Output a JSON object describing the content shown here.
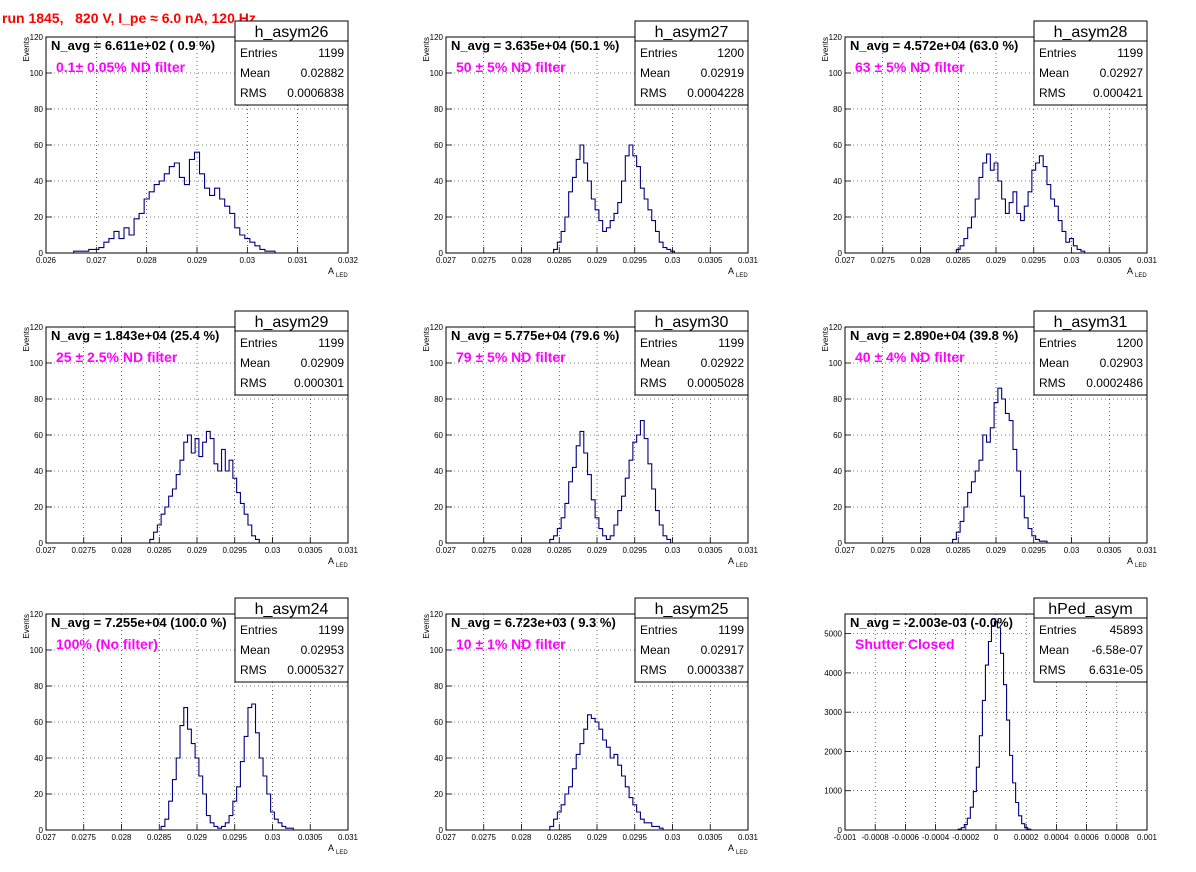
{
  "figure_title": "run 1845,   820 V, I_pe ≈ 6.0 nA, 120 Hz",
  "colors": {
    "histogram_line": "#000080",
    "title_red": "#ff0000",
    "filter_magenta": "#ff00ff",
    "grid": "#000000"
  },
  "chart_data": [
    {
      "type": "bar",
      "histogram_name": "h_asym26",
      "navg_text": "N_avg = 6.611e+02 ( 0.9 %)",
      "filter_text": "0.1± 0.05% ND filter",
      "stats": {
        "entries_label": "Entries",
        "entries": "1199",
        "mean_label": "Mean",
        "mean": "0.02882",
        "rms_label": "RMS",
        "rms": "0.0006838"
      },
      "ylabel": "Events",
      "xlabel": "A",
      "xlabel_sub": "LED",
      "xlim": [
        0.026,
        0.032
      ],
      "ylim": [
        0,
        120
      ],
      "xticks": [
        0.026,
        0.027,
        0.028,
        0.029,
        0.03,
        0.031,
        0.032
      ],
      "xtick_labels": [
        "0.026",
        "0.027",
        "0.028",
        "0.029",
        "0.03",
        "0.031",
        "0.032"
      ],
      "yticks": [
        0,
        20,
        40,
        60,
        80,
        100,
        120
      ],
      "ytick_labels": [
        "0",
        "20",
        "40",
        "60",
        "80",
        "100",
        "120"
      ],
      "x": [
        0.0266,
        0.0267,
        0.0268,
        0.0269,
        0.027,
        0.0271,
        0.0272,
        0.0273,
        0.0274,
        0.0275,
        0.0276,
        0.0277,
        0.0278,
        0.0279,
        0.028,
        0.0281,
        0.0282,
        0.0283,
        0.0284,
        0.0285,
        0.0286,
        0.0287,
        0.0288,
        0.0289,
        0.029,
        0.0291,
        0.0292,
        0.0293,
        0.0294,
        0.0295,
        0.0296,
        0.0297,
        0.0298,
        0.0299,
        0.03,
        0.0301,
        0.0302,
        0.0303,
        0.0304,
        0.0305
      ],
      "values": [
        1,
        1,
        1,
        2,
        2,
        3,
        6,
        8,
        12,
        8,
        14,
        10,
        19,
        22,
        30,
        34,
        38,
        40,
        44,
        48,
        50,
        42,
        38,
        52,
        56,
        44,
        36,
        32,
        36,
        30,
        26,
        22,
        14,
        10,
        8,
        6,
        4,
        2,
        1,
        1
      ]
    },
    {
      "type": "bar",
      "histogram_name": "h_asym27",
      "navg_text": "N_avg = 3.635e+04 (50.1 %)",
      "filter_text": "50 ± 5% ND filter",
      "stats": {
        "entries_label": "Entries",
        "entries": "1200",
        "mean_label": "Mean",
        "mean": "0.02919",
        "rms_label": "RMS",
        "rms": "0.0004228"
      },
      "ylabel": "Events",
      "xlabel": "A",
      "xlabel_sub": "LED",
      "xlim": [
        0.027,
        0.031
      ],
      "ylim": [
        0,
        120
      ],
      "xticks": [
        0.027,
        0.0275,
        0.028,
        0.0285,
        0.029,
        0.0295,
        0.03,
        0.0305,
        0.031
      ],
      "xtick_labels": [
        "0.027",
        "0.0275",
        "0.028",
        "0.0285",
        "0.029",
        "0.0295",
        "0.03",
        "0.0305",
        "0.031"
      ],
      "yticks": [
        0,
        20,
        40,
        60,
        80,
        100,
        120
      ],
      "ytick_labels": [
        "0",
        "20",
        "40",
        "60",
        "80",
        "100",
        "120"
      ],
      "x": [
        0.02845,
        0.0285,
        0.02855,
        0.0286,
        0.02865,
        0.0287,
        0.02875,
        0.0288,
        0.02885,
        0.0289,
        0.02895,
        0.029,
        0.02905,
        0.0291,
        0.02915,
        0.0292,
        0.02925,
        0.0293,
        0.02935,
        0.0294,
        0.02945,
        0.0295,
        0.02955,
        0.0296,
        0.02965,
        0.0297,
        0.02975,
        0.0298,
        0.02985,
        0.0299,
        0.02995,
        0.03
      ],
      "values": [
        2,
        6,
        12,
        20,
        34,
        42,
        52,
        60,
        50,
        40,
        30,
        24,
        18,
        12,
        14,
        18,
        22,
        28,
        40,
        54,
        60,
        54,
        48,
        36,
        30,
        24,
        18,
        12,
        6,
        3,
        2,
        1
      ]
    },
    {
      "type": "bar",
      "histogram_name": "h_asym28",
      "navg_text": "N_avg = 4.572e+04 (63.0 %)",
      "filter_text": "63 ± 5% ND filter",
      "stats": {
        "entries_label": "Entries",
        "entries": "1199",
        "mean_label": "Mean",
        "mean": "0.02927",
        "rms_label": "RMS",
        "rms": "0.000421"
      },
      "ylabel": "Events",
      "xlabel": "A",
      "xlabel_sub": "LED",
      "xlim": [
        0.027,
        0.031
      ],
      "ylim": [
        0,
        120
      ],
      "xticks": [
        0.027,
        0.0275,
        0.028,
        0.0285,
        0.029,
        0.0295,
        0.03,
        0.0305,
        0.031
      ],
      "xtick_labels": [
        "0.027",
        "0.0275",
        "0.028",
        "0.0285",
        "0.029",
        "0.0295",
        "0.03",
        "0.0305",
        "0.031"
      ],
      "yticks": [
        0,
        20,
        40,
        60,
        80,
        100,
        120
      ],
      "ytick_labels": [
        "0",
        "20",
        "40",
        "60",
        "80",
        "100",
        "120"
      ],
      "x": [
        0.0285,
        0.02855,
        0.0286,
        0.02865,
        0.0287,
        0.02875,
        0.0288,
        0.02885,
        0.0289,
        0.02895,
        0.029,
        0.02905,
        0.0291,
        0.02915,
        0.0292,
        0.02925,
        0.0293,
        0.02935,
        0.0294,
        0.02945,
        0.0295,
        0.02955,
        0.0296,
        0.02965,
        0.0297,
        0.02975,
        0.0298,
        0.02985,
        0.0299,
        0.02995,
        0.03,
        0.03005,
        0.0301,
        0.03015
      ],
      "values": [
        2,
        4,
        8,
        14,
        20,
        30,
        42,
        50,
        55,
        46,
        50,
        40,
        30,
        22,
        28,
        34,
        22,
        18,
        26,
        34,
        46,
        50,
        54,
        48,
        38,
        30,
        26,
        18,
        12,
        6,
        8,
        4,
        2,
        1
      ]
    },
    {
      "type": "bar",
      "histogram_name": "h_asym29",
      "navg_text": "N_avg = 1.843e+04 (25.4 %)",
      "filter_text": "25 ± 2.5% ND filter",
      "stats": {
        "entries_label": "Entries",
        "entries": "1199",
        "mean_label": "Mean",
        "mean": "0.02909",
        "rms_label": "RMS",
        "rms": "0.000301"
      },
      "ylabel": "Events",
      "xlabel": "A",
      "xlabel_sub": "LED",
      "xlim": [
        0.027,
        0.031
      ],
      "ylim": [
        0,
        120
      ],
      "xticks": [
        0.027,
        0.0275,
        0.028,
        0.0285,
        0.029,
        0.0295,
        0.03,
        0.0305,
        0.031
      ],
      "xtick_labels": [
        "0.027",
        "0.0275",
        "0.028",
        "0.0285",
        "0.029",
        "0.0295",
        "0.03",
        "0.0305",
        "0.031"
      ],
      "yticks": [
        0,
        20,
        40,
        60,
        80,
        100,
        120
      ],
      "ytick_labels": [
        "0",
        "20",
        "40",
        "60",
        "80",
        "100",
        "120"
      ],
      "x": [
        0.0284,
        0.02845,
        0.0285,
        0.02855,
        0.0286,
        0.02865,
        0.0287,
        0.02875,
        0.0288,
        0.02885,
        0.0289,
        0.02895,
        0.029,
        0.02905,
        0.0291,
        0.02915,
        0.0292,
        0.02925,
        0.0293,
        0.02935,
        0.0294,
        0.02945,
        0.0295,
        0.02955,
        0.0296,
        0.02965,
        0.0297,
        0.02975,
        0.0298
      ],
      "values": [
        2,
        6,
        10,
        16,
        20,
        26,
        30,
        38,
        46,
        56,
        60,
        50,
        58,
        48,
        56,
        62,
        58,
        44,
        40,
        52,
        40,
        46,
        36,
        28,
        22,
        16,
        10,
        4,
        2
      ]
    },
    {
      "type": "bar",
      "histogram_name": "h_asym30",
      "navg_text": "N_avg = 5.775e+04 (79.6 %)",
      "filter_text": "79 ± 5% ND filter",
      "stats": {
        "entries_label": "Entries",
        "entries": "1199",
        "mean_label": "Mean",
        "mean": "0.02922",
        "rms_label": "RMS",
        "rms": "0.0005028"
      },
      "ylabel": "Events",
      "xlabel": "A",
      "xlabel_sub": "LED",
      "xlim": [
        0.027,
        0.031
      ],
      "ylim": [
        0,
        120
      ],
      "xticks": [
        0.027,
        0.0275,
        0.028,
        0.0285,
        0.029,
        0.0295,
        0.03,
        0.0305,
        0.031
      ],
      "xtick_labels": [
        "0.027",
        "0.0275",
        "0.028",
        "0.0285",
        "0.029",
        "0.0295",
        "0.03",
        "0.0305",
        "0.031"
      ],
      "yticks": [
        0,
        20,
        40,
        60,
        80,
        100,
        120
      ],
      "ytick_labels": [
        "0",
        "20",
        "40",
        "60",
        "80",
        "100",
        "120"
      ],
      "x": [
        0.0284,
        0.02845,
        0.0285,
        0.02855,
        0.0286,
        0.02865,
        0.0287,
        0.02875,
        0.0288,
        0.02885,
        0.0289,
        0.02895,
        0.029,
        0.02905,
        0.0291,
        0.02915,
        0.0292,
        0.02925,
        0.0293,
        0.02935,
        0.0294,
        0.02945,
        0.0295,
        0.02955,
        0.0296,
        0.02965,
        0.0297,
        0.02975,
        0.0298,
        0.02985,
        0.0299,
        0.02995
      ],
      "values": [
        2,
        4,
        8,
        14,
        22,
        34,
        42,
        54,
        62,
        50,
        38,
        24,
        14,
        8,
        4,
        2,
        4,
        10,
        18,
        26,
        36,
        46,
        56,
        60,
        68,
        58,
        44,
        30,
        18,
        10,
        4,
        2
      ]
    },
    {
      "type": "bar",
      "histogram_name": "h_asym31",
      "navg_text": "N_avg = 2.890e+04 (39.8 %)",
      "filter_text": "40 ± 4% ND filter",
      "stats": {
        "entries_label": "Entries",
        "entries": "1200",
        "mean_label": "Mean",
        "mean": "0.02903",
        "rms_label": "RMS",
        "rms": "0.0002486"
      },
      "ylabel": "Events",
      "xlabel": "A",
      "xlabel_sub": "LED",
      "xlim": [
        0.027,
        0.031
      ],
      "ylim": [
        0,
        120
      ],
      "xticks": [
        0.027,
        0.0275,
        0.028,
        0.0285,
        0.029,
        0.0295,
        0.03,
        0.0305,
        0.031
      ],
      "xtick_labels": [
        "0.027",
        "0.0275",
        "0.028",
        "0.0285",
        "0.029",
        "0.0295",
        "0.03",
        "0.0305",
        "0.031"
      ],
      "yticks": [
        0,
        20,
        40,
        60,
        80,
        100,
        120
      ],
      "ytick_labels": [
        "0",
        "20",
        "40",
        "60",
        "80",
        "100",
        "120"
      ],
      "x": [
        0.02845,
        0.0285,
        0.02855,
        0.0286,
        0.02865,
        0.0287,
        0.02875,
        0.0288,
        0.02885,
        0.0289,
        0.02895,
        0.029,
        0.02905,
        0.0291,
        0.02915,
        0.0292,
        0.02925,
        0.0293,
        0.02935,
        0.0294,
        0.02945,
        0.0295,
        0.02955,
        0.0296,
        0.02965
      ],
      "values": [
        2,
        6,
        12,
        20,
        28,
        34,
        40,
        46,
        60,
        56,
        64,
        78,
        86,
        80,
        72,
        68,
        52,
        40,
        26,
        14,
        8,
        4,
        2,
        1,
        1
      ]
    },
    {
      "type": "bar",
      "histogram_name": "h_asym24",
      "navg_text": "N_avg = 7.255e+04 (100.0 %)",
      "filter_text": "100% (No filter)",
      "stats": {
        "entries_label": "Entries",
        "entries": "1199",
        "mean_label": "Mean",
        "mean": "0.02953",
        "rms_label": "RMS",
        "rms": "0.0005327"
      },
      "ylabel": "Events",
      "xlabel": "A",
      "xlabel_sub": "LED",
      "xlim": [
        0.027,
        0.031
      ],
      "ylim": [
        0,
        120
      ],
      "xticks": [
        0.027,
        0.0275,
        0.028,
        0.0285,
        0.029,
        0.0295,
        0.03,
        0.0305,
        0.031
      ],
      "xtick_labels": [
        "0.027",
        "0.0275",
        "0.028",
        "0.0285",
        "0.029",
        "0.0295",
        "0.03",
        "0.0305",
        "0.031"
      ],
      "yticks": [
        0,
        20,
        40,
        60,
        80,
        100,
        120
      ],
      "ytick_labels": [
        "0",
        "20",
        "40",
        "60",
        "80",
        "100",
        "120"
      ],
      "x": [
        0.02855,
        0.0286,
        0.02865,
        0.0287,
        0.02875,
        0.0288,
        0.02885,
        0.0289,
        0.02895,
        0.029,
        0.02905,
        0.0291,
        0.02915,
        0.0292,
        0.02925,
        0.0293,
        0.02935,
        0.0294,
        0.02945,
        0.0295,
        0.02955,
        0.0296,
        0.02965,
        0.0297,
        0.02975,
        0.0298,
        0.02985,
        0.0299,
        0.02995,
        0.03,
        0.03005,
        0.0301,
        0.03015,
        0.0302,
        0.03025
      ],
      "values": [
        2,
        6,
        16,
        28,
        40,
        58,
        68,
        56,
        48,
        40,
        30,
        20,
        8,
        4,
        2,
        1,
        2,
        4,
        8,
        16,
        24,
        38,
        52,
        68,
        70,
        54,
        40,
        30,
        20,
        10,
        6,
        4,
        2,
        1,
        1
      ]
    },
    {
      "type": "bar",
      "histogram_name": "h_asym25",
      "navg_text": "N_avg = 6.723e+03 ( 9.3 %)",
      "filter_text": "10 ± 1% ND filter",
      "stats": {
        "entries_label": "Entries",
        "entries": "1199",
        "mean_label": "Mean",
        "mean": "0.02917",
        "rms_label": "RMS",
        "rms": "0.0003387"
      },
      "ylabel": "Events",
      "xlabel": "A",
      "xlabel_sub": "LED",
      "xlim": [
        0.027,
        0.031
      ],
      "ylim": [
        0,
        120
      ],
      "xticks": [
        0.027,
        0.0275,
        0.028,
        0.0285,
        0.029,
        0.0295,
        0.03,
        0.0305,
        0.031
      ],
      "xtick_labels": [
        "0.027",
        "0.0275",
        "0.028",
        "0.0285",
        "0.029",
        "0.0295",
        "0.03",
        "0.0305",
        "0.031"
      ],
      "yticks": [
        0,
        20,
        40,
        60,
        80,
        100,
        120
      ],
      "ytick_labels": [
        "0",
        "20",
        "40",
        "60",
        "80",
        "100",
        "120"
      ],
      "x": [
        0.0284,
        0.02845,
        0.0285,
        0.02855,
        0.0286,
        0.02865,
        0.0287,
        0.02875,
        0.0288,
        0.02885,
        0.0289,
        0.02895,
        0.029,
        0.02905,
        0.0291,
        0.02915,
        0.0292,
        0.02925,
        0.0293,
        0.02935,
        0.0294,
        0.02945,
        0.0295,
        0.02955,
        0.0296,
        0.02965,
        0.0297,
        0.02975,
        0.0298,
        0.02985
      ],
      "values": [
        2,
        6,
        10,
        14,
        20,
        24,
        34,
        42,
        48,
        56,
        64,
        62,
        60,
        56,
        50,
        46,
        40,
        42,
        36,
        30,
        24,
        18,
        14,
        10,
        6,
        4,
        4,
        2,
        2,
        1
      ]
    },
    {
      "type": "bar",
      "histogram_name": "hPed_asym",
      "navg_text": "N_avg = -2.003e-03 (-0.0%)",
      "filter_text": "Shutter Closed",
      "stats": {
        "entries_label": "Entries",
        "entries": "45893",
        "mean_label": "Mean",
        "mean": "-6.58e-07",
        "rms_label": "RMS",
        "rms": "6.631e-05"
      },
      "ylabel": "",
      "xlabel": "",
      "xlabel_sub": "",
      "xlim": [
        -0.001,
        0.001
      ],
      "ylim": [
        0,
        5500
      ],
      "xticks": [
        -0.001,
        -0.0008,
        -0.0006,
        -0.0004,
        -0.0002,
        0,
        0.0002,
        0.0004,
        0.0006,
        0.0008,
        0.001
      ],
      "xtick_labels": [
        "-0.001",
        "-0.0008",
        "-0.0006",
        "-0.0004",
        "-0.0002",
        "0",
        "0.0002",
        "0.0004",
        "0.0006",
        "0.0008",
        "0.001"
      ],
      "yticks": [
        0,
        1000,
        2000,
        3000,
        4000,
        5000
      ],
      "ytick_labels": [
        "0",
        "1000",
        "2000",
        "3000",
        "4000",
        "5000"
      ],
      "x": [
        -0.00024,
        -0.00022,
        -0.0002,
        -0.00018,
        -0.00016,
        -0.00014,
        -0.00012,
        -0.0001,
        -8e-05,
        -6e-05,
        -4e-05,
        -2e-05,
        0.0,
        2e-05,
        4e-05,
        6e-05,
        8e-05,
        0.0001,
        0.00012,
        0.00014,
        0.00016,
        0.00018,
        0.0002,
        0.00022
      ],
      "values": [
        20,
        60,
        140,
        300,
        580,
        980,
        1600,
        2400,
        3300,
        4200,
        4800,
        5200,
        5300,
        5150,
        4500,
        3700,
        2800,
        1900,
        1200,
        700,
        360,
        160,
        60,
        20
      ]
    }
  ]
}
